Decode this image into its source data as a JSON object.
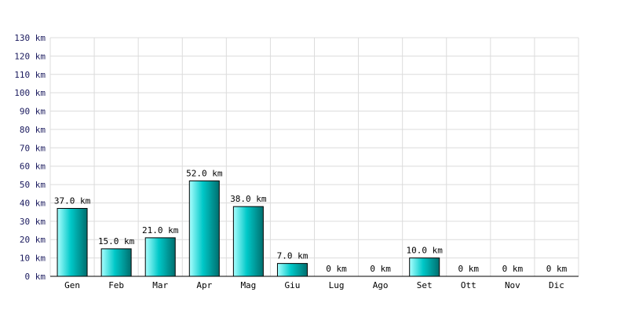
{
  "chart_data": {
    "type": "bar",
    "title": "",
    "xlabel": "",
    "ylabel": "",
    "categories": [
      "Gen",
      "Feb",
      "Mar",
      "Apr",
      "Mag",
      "Giu",
      "Lug",
      "Ago",
      "Set",
      "Ott",
      "Nov",
      "Dic"
    ],
    "values": [
      37.0,
      15.0,
      21.0,
      52.0,
      38.0,
      7.0,
      0,
      0,
      10.0,
      0,
      0,
      0
    ],
    "data_labels": [
      "37.0 km",
      "15.0 km",
      "21.0 km",
      "52.0 km",
      "38.0 km",
      "7.0 km",
      "0 km",
      "0 km",
      "10.0 km",
      "0 km",
      "0 km",
      "0 km"
    ],
    "y_ticks": [
      "0 km",
      "10 km",
      "20 km",
      "30 km",
      "40 km",
      "50 km",
      "60 km",
      "70 km",
      "80 km",
      "90 km",
      "100 km",
      "110 km",
      "120 km",
      "130 km"
    ],
    "ylim": [
      0,
      130
    ],
    "grid": true,
    "bar_color": "#00c8c8",
    "bar_color_light": "#aaffff",
    "bar_color_dark": "#006f6f"
  }
}
